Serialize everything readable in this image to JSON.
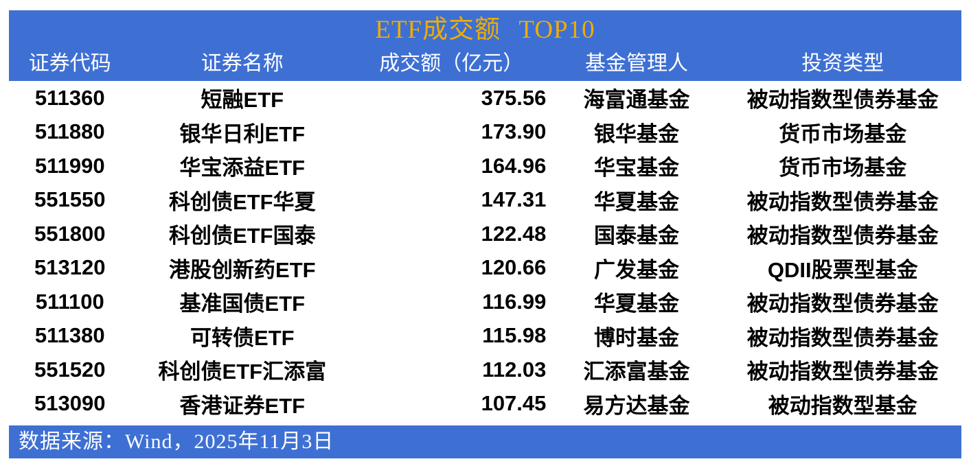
{
  "title": "ETF成交额 TOP10",
  "colors": {
    "band_blue": "#3E70D4",
    "title_gold": "#F0AC00",
    "header_text": "#FFFFFF",
    "body_text": "#000000",
    "background": "#FFFFFF"
  },
  "table": {
    "columns": {
      "code": "证券代码",
      "name": "证券名称",
      "value": "成交额（亿元）",
      "manager": "基金管理人",
      "type": "投资类型"
    },
    "rows": [
      {
        "code": "511360",
        "name": "短融ETF",
        "value": "375.56",
        "manager": "海富通基金",
        "type": "被动指数型债券基金"
      },
      {
        "code": "511880",
        "name": "银华日利ETF",
        "value": "173.90",
        "manager": "银华基金",
        "type": "货币市场基金"
      },
      {
        "code": "511990",
        "name": "华宝添益ETF",
        "value": "164.96",
        "manager": "华宝基金",
        "type": "货币市场基金"
      },
      {
        "code": "551550",
        "name": "科创债ETF华夏",
        "value": "147.31",
        "manager": "华夏基金",
        "type": "被动指数型债券基金"
      },
      {
        "code": "551800",
        "name": "科创债ETF国泰",
        "value": "122.48",
        "manager": "国泰基金",
        "type": "被动指数型债券基金"
      },
      {
        "code": "513120",
        "name": "港股创新药ETF",
        "value": "120.66",
        "manager": "广发基金",
        "type": "QDII股票型基金"
      },
      {
        "code": "511100",
        "name": "基准国债ETF",
        "value": "116.99",
        "manager": "华夏基金",
        "type": "被动指数型债券基金"
      },
      {
        "code": "511380",
        "name": "可转债ETF",
        "value": "115.98",
        "manager": "博时基金",
        "type": "被动指数型债券基金"
      },
      {
        "code": "551520",
        "name": "科创债ETF汇添富",
        "value": "112.03",
        "manager": "汇添富基金",
        "type": "被动指数型债券基金"
      },
      {
        "code": "513090",
        "name": "香港证券ETF",
        "value": "107.45",
        "manager": "易方达基金",
        "type": "被动指数型基金"
      }
    ]
  },
  "footer": {
    "source": "数据来源：Wind，2025年11月3日"
  },
  "chart_data": {
    "type": "table",
    "title": "ETF成交额 TOP10",
    "columns": [
      "证券代码",
      "证券名称",
      "成交额（亿元）",
      "基金管理人",
      "投资类型"
    ],
    "categories": [
      "短融ETF",
      "银华日利ETF",
      "华宝添益ETF",
      "科创债ETF华夏",
      "科创债ETF国泰",
      "港股创新药ETF",
      "基准国债ETF",
      "可转债ETF",
      "科创债ETF汇添富",
      "香港证券ETF"
    ],
    "values": [
      375.56,
      173.9,
      164.96,
      147.31,
      122.48,
      120.66,
      116.99,
      115.98,
      112.03,
      107.45
    ],
    "value_unit": "亿元",
    "source_note": "数据来源：Wind，2025年11月3日"
  }
}
